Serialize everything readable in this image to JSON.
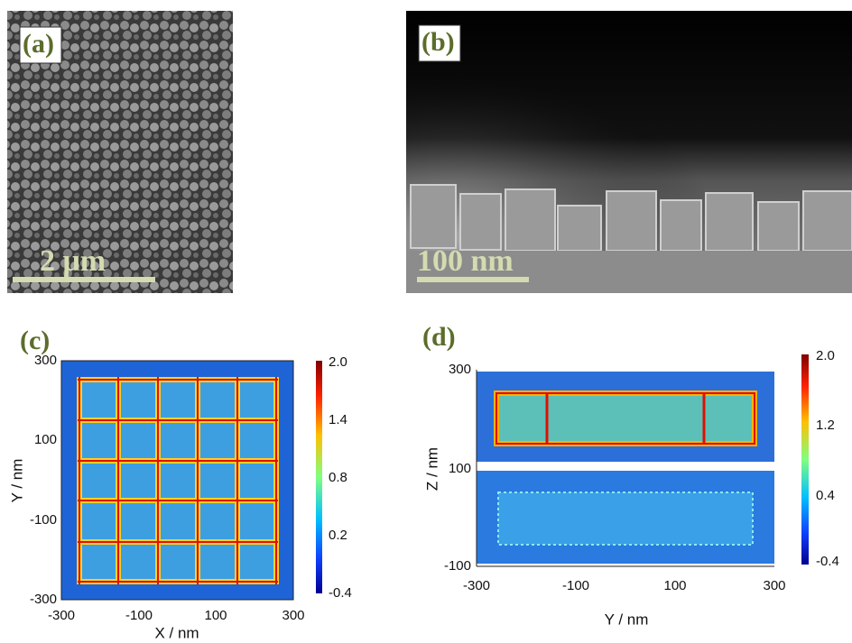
{
  "panels": {
    "a": {
      "label": "(a)",
      "scale_bar": "2 μm"
    },
    "b": {
      "label": "(b)",
      "scale_bar": "100 nm"
    },
    "c": {
      "label": "(c)",
      "x_label": "X / nm",
      "y_label": "Y / nm",
      "xticks": [
        "-300",
        "-100",
        "100",
        "300"
      ],
      "yticks": [
        "300",
        "100",
        "-100",
        "-300"
      ],
      "colorbar_ticks": [
        "2.0",
        "1.4",
        "0.8",
        "0.2",
        "-0.4"
      ]
    },
    "d": {
      "label": "(d)",
      "x_label": "Y / nm",
      "y_label": "Z / nm",
      "xticks": [
        "-300",
        "-100",
        "100",
        "300"
      ],
      "yticks": [
        "300",
        "100",
        "-100"
      ],
      "colorbar_ticks": [
        "2.0",
        "1.2",
        "0.4",
        "-0.4"
      ]
    }
  }
}
